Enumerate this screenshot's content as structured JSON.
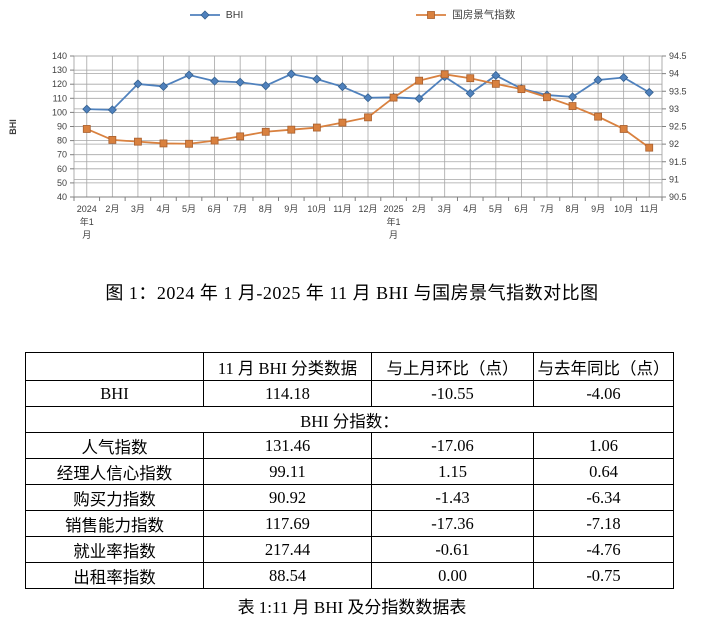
{
  "chart_data": {
    "type": "line",
    "title": "",
    "categories": [
      "2024年1月",
      "2月",
      "3月",
      "4月",
      "5月",
      "6月",
      "7月",
      "8月",
      "9月",
      "10月",
      "11月",
      "12月",
      "2025年1月",
      "2月",
      "3月",
      "4月",
      "5月",
      "6月",
      "7月",
      "8月",
      "9月",
      "10月",
      "11月"
    ],
    "series": [
      {
        "name": "BHI",
        "axis": "left",
        "marker": "diamond",
        "color": "#4F81BD",
        "marker_border": "#35618F",
        "values": [
          102.3,
          101.8,
          120.2,
          118.4,
          126.5,
          122.2,
          121.4,
          118.9,
          127.2,
          123.6,
          118.24,
          110.4,
          110.7,
          109.8,
          125.3,
          113.5,
          126.2,
          116.8,
          112.3,
          111.0,
          123.0,
          124.73,
          114.18
        ]
      },
      {
        "name": "国房景气指数",
        "axis": "right",
        "marker": "square",
        "color": "#D9813F",
        "marker_border": "#A85F2E",
        "values": [
          92.43,
          92.12,
          92.07,
          92.02,
          92.01,
          92.1,
          92.22,
          92.35,
          92.41,
          92.47,
          92.61,
          92.76,
          93.32,
          93.8,
          93.98,
          93.87,
          93.71,
          93.56,
          93.33,
          93.08,
          92.78,
          92.43,
          91.9
        ]
      }
    ],
    "left_axis": {
      "title": "BHI",
      "min": 40,
      "max": 140,
      "step": 10,
      "tick_labels": [
        "140",
        "130",
        "120",
        "110",
        "100",
        "90",
        "80",
        "70",
        "60",
        "50",
        "40"
      ]
    },
    "right_axis": {
      "title": "",
      "min": 90.5,
      "max": 94.5,
      "step": 0.5,
      "tick_labels": [
        "94.5",
        "94",
        "93.5",
        "93",
        "92.5",
        "92",
        "91.5",
        "91",
        "90.5"
      ]
    },
    "legend_position": "top",
    "grid": true,
    "grid_color": "#A6A6A6",
    "axis_color": "#808080",
    "label_color": "#404040"
  },
  "legend": {
    "items": [
      {
        "label": "BHI"
      },
      {
        "label": "国房景气指数"
      }
    ]
  },
  "figure_caption": "图 1：2024 年 1 月-2025 年 11 月 BHI 与国房景气指数对比图",
  "table": {
    "headers": [
      "",
      "11 月 BHI 分类数据",
      "与上月环比（点）",
      "与去年同比（点）"
    ],
    "rows": [
      {
        "cells": [
          "BHI",
          "114.18",
          "-10.55",
          "-4.06"
        ]
      },
      {
        "section": "BHI 分指数："
      },
      {
        "cells": [
          "人气指数",
          "131.46",
          "-17.06",
          "1.06"
        ]
      },
      {
        "cells": [
          "经理人信心指数",
          "99.11",
          "1.15",
          "0.64"
        ]
      },
      {
        "cells": [
          "购买力指数",
          "90.92",
          "-1.43",
          "-6.34"
        ]
      },
      {
        "cells": [
          "销售能力指数",
          "117.69",
          "-17.36",
          "-7.18"
        ]
      },
      {
        "cells": [
          "就业率指数",
          "217.44",
          "-0.61",
          "-4.76"
        ]
      },
      {
        "cells": [
          "出租率指数",
          "88.54",
          "0.00",
          "-0.75"
        ]
      }
    ],
    "caption": "表 1:11 月 BHI 及分指数数据表"
  }
}
